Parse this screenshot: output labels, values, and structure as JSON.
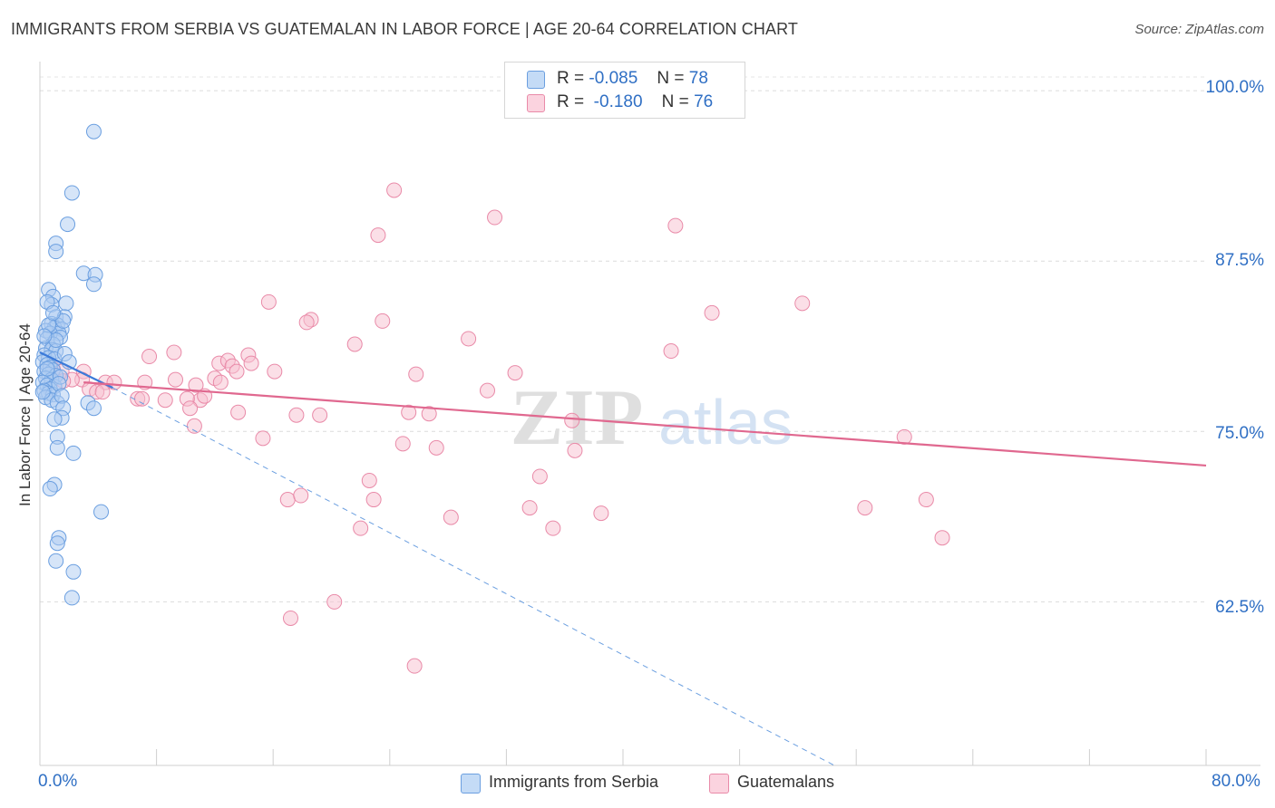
{
  "title": "IMMIGRANTS FROM SERBIA VS GUATEMALAN IN LABOR FORCE | AGE 20-64 CORRELATION CHART",
  "source": "Source: ZipAtlas.com",
  "watermark": {
    "zip": "ZIP",
    "atlas": "atlas"
  },
  "stats": [
    {
      "r_label": "R =",
      "r_value": "-0.085",
      "n_label": "N =",
      "n_value": "78",
      "color": "#aecbf2"
    },
    {
      "r_label": "R =",
      "r_value": "-0.180",
      "n_label": "N =",
      "n_value": "76",
      "color": "#f7bfd0"
    }
  ],
  "chart_data": {
    "type": "scatter",
    "title": "IMMIGRANTS FROM SERBIA VS GUATEMALAN IN LABOR FORCE | AGE 20-64 CORRELATION CHART",
    "xlabel": "",
    "ylabel": "In Labor Force | Age 20-64",
    "xlim": [
      0,
      80
    ],
    "ylim": [
      50.5,
      102
    ],
    "x_tick_labels": [
      {
        "value": 0,
        "label": "0.0%"
      },
      {
        "value": 80,
        "label": "80.0%"
      }
    ],
    "x_minor_ticks": [
      0,
      8,
      16,
      24,
      32,
      40,
      48,
      56,
      64,
      72,
      80
    ],
    "y_ticks": [
      {
        "value": 62.5,
        "label": "62.5%"
      },
      {
        "value": 75.0,
        "label": "75.0%"
      },
      {
        "value": 87.5,
        "label": "87.5%"
      },
      {
        "value": 100.0,
        "label": "100.0%"
      }
    ],
    "grid": "horizontal dashed",
    "legend_position": "bottom-center",
    "series": [
      {
        "name": "Immigrants from Serbia",
        "color": "#aecbf2",
        "stroke": "#6b9fe0",
        "points": [
          [
            3.7,
            97.0
          ],
          [
            2.2,
            92.5
          ],
          [
            1.9,
            90.2
          ],
          [
            1.1,
            88.8
          ],
          [
            1.1,
            88.2
          ],
          [
            3.0,
            86.6
          ],
          [
            3.8,
            86.5
          ],
          [
            3.7,
            85.8
          ],
          [
            0.6,
            85.4
          ],
          [
            0.9,
            84.9
          ],
          [
            1.8,
            84.4
          ],
          [
            0.8,
            84.3
          ],
          [
            1.1,
            83.4
          ],
          [
            1.7,
            83.4
          ],
          [
            0.8,
            82.9
          ],
          [
            1.2,
            82.8
          ],
          [
            1.0,
            82.6
          ],
          [
            1.5,
            82.5
          ],
          [
            1.3,
            82.2
          ],
          [
            0.4,
            82.4
          ],
          [
            0.7,
            82.2
          ],
          [
            1.4,
            81.9
          ],
          [
            0.5,
            81.8
          ],
          [
            0.9,
            81.4
          ],
          [
            0.4,
            81.1
          ],
          [
            0.8,
            81.0
          ],
          [
            1.1,
            80.9
          ],
          [
            0.3,
            80.6
          ],
          [
            0.6,
            80.4
          ],
          [
            1.0,
            80.3
          ],
          [
            0.2,
            80.1
          ],
          [
            0.5,
            79.9
          ],
          [
            0.7,
            79.7
          ],
          [
            0.9,
            79.5
          ],
          [
            0.3,
            79.4
          ],
          [
            0.6,
            79.2
          ],
          [
            1.1,
            79.1
          ],
          [
            0.4,
            78.9
          ],
          [
            0.8,
            78.8
          ],
          [
            0.2,
            78.6
          ],
          [
            0.5,
            78.4
          ],
          [
            1.0,
            78.3
          ],
          [
            0.7,
            78.1
          ],
          [
            0.3,
            78.0
          ],
          [
            0.6,
            77.8
          ],
          [
            0.9,
            77.7
          ],
          [
            0.4,
            77.5
          ],
          [
            0.8,
            77.3
          ],
          [
            1.2,
            77.1
          ],
          [
            0.5,
            79.6
          ],
          [
            1.7,
            80.7
          ],
          [
            1.4,
            79.0
          ],
          [
            1.3,
            78.5
          ],
          [
            2.0,
            80.1
          ],
          [
            1.5,
            77.6
          ],
          [
            0.2,
            77.9
          ],
          [
            0.6,
            82.8
          ],
          [
            1.1,
            81.7
          ],
          [
            0.5,
            84.5
          ],
          [
            1.6,
            83.1
          ],
          [
            0.9,
            83.7
          ],
          [
            0.3,
            82.0
          ],
          [
            3.3,
            77.1
          ],
          [
            3.7,
            76.7
          ],
          [
            1.6,
            76.7
          ],
          [
            1.5,
            76.0
          ],
          [
            1.0,
            75.9
          ],
          [
            1.2,
            74.6
          ],
          [
            1.2,
            73.8
          ],
          [
            2.3,
            73.4
          ],
          [
            1.0,
            71.1
          ],
          [
            0.7,
            70.8
          ],
          [
            4.2,
            69.1
          ],
          [
            1.3,
            67.2
          ],
          [
            1.2,
            66.8
          ],
          [
            1.1,
            65.5
          ],
          [
            2.3,
            64.7
          ],
          [
            2.2,
            62.8
          ]
        ]
      },
      {
        "name": "Guatemalans",
        "color": "#f7bfd0",
        "stroke": "#e98aa8",
        "points": [
          [
            24.3,
            92.7
          ],
          [
            31.2,
            90.7
          ],
          [
            43.6,
            90.1
          ],
          [
            23.2,
            89.4
          ],
          [
            52.3,
            84.4
          ],
          [
            15.7,
            84.5
          ],
          [
            46.1,
            83.7
          ],
          [
            23.5,
            83.1
          ],
          [
            18.6,
            83.2
          ],
          [
            18.3,
            83.0
          ],
          [
            29.4,
            81.8
          ],
          [
            21.6,
            81.4
          ],
          [
            43.3,
            80.9
          ],
          [
            7.5,
            80.5
          ],
          [
            9.2,
            80.8
          ],
          [
            12.3,
            80.0
          ],
          [
            12.9,
            80.2
          ],
          [
            14.3,
            80.6
          ],
          [
            14.5,
            80.0
          ],
          [
            13.2,
            79.8
          ],
          [
            16.1,
            79.4
          ],
          [
            3.0,
            79.4
          ],
          [
            13.5,
            79.4
          ],
          [
            25.8,
            79.2
          ],
          [
            32.6,
            79.3
          ],
          [
            9.3,
            78.8
          ],
          [
            12.0,
            78.9
          ],
          [
            12.4,
            78.6
          ],
          [
            4.5,
            78.6
          ],
          [
            5.1,
            78.6
          ],
          [
            2.9,
            78.8
          ],
          [
            0.9,
            79.6
          ],
          [
            1.5,
            79.4
          ],
          [
            2.2,
            78.8
          ],
          [
            3.4,
            78.1
          ],
          [
            7.2,
            78.6
          ],
          [
            10.7,
            78.4
          ],
          [
            6.7,
            77.4
          ],
          [
            7.0,
            77.4
          ],
          [
            11.0,
            77.3
          ],
          [
            8.6,
            77.3
          ],
          [
            10.1,
            77.4
          ],
          [
            11.3,
            77.6
          ],
          [
            3.9,
            77.9
          ],
          [
            4.3,
            77.9
          ],
          [
            1.6,
            78.7
          ],
          [
            30.7,
            78.0
          ],
          [
            10.3,
            76.7
          ],
          [
            13.6,
            76.4
          ],
          [
            17.6,
            76.2
          ],
          [
            19.2,
            76.2
          ],
          [
            25.3,
            76.4
          ],
          [
            26.7,
            76.3
          ],
          [
            36.5,
            75.8
          ],
          [
            10.6,
            75.4
          ],
          [
            15.3,
            74.5
          ],
          [
            24.9,
            74.1
          ],
          [
            27.2,
            73.8
          ],
          [
            36.7,
            73.6
          ],
          [
            22.6,
            71.4
          ],
          [
            34.3,
            71.7
          ],
          [
            17.0,
            70.0
          ],
          [
            17.9,
            70.3
          ],
          [
            22.9,
            70.0
          ],
          [
            33.6,
            69.4
          ],
          [
            28.2,
            68.7
          ],
          [
            38.5,
            69.0
          ],
          [
            56.6,
            69.4
          ],
          [
            60.8,
            70.0
          ],
          [
            22.0,
            67.9
          ],
          [
            35.2,
            67.9
          ],
          [
            61.9,
            67.2
          ],
          [
            20.2,
            62.5
          ],
          [
            17.2,
            61.3
          ],
          [
            25.7,
            57.8
          ],
          [
            59.3,
            74.6
          ]
        ]
      }
    ],
    "trendlines": [
      {
        "series": "Immigrants from Serbia",
        "style": "solid",
        "x": [
          0,
          5
        ],
        "y": [
          80.8,
          78.2
        ],
        "color": "#3b7ad9"
      },
      {
        "series": "Immigrants from Serbia",
        "style": "dashed",
        "x": [
          5,
          54.5
        ],
        "y": [
          78.2,
          50.5
        ],
        "color": "#6b9fe0"
      },
      {
        "series": "Guatemalans",
        "style": "solid",
        "x": [
          3,
          80
        ],
        "y": [
          78.6,
          72.5
        ],
        "color": "#e0688f"
      }
    ]
  }
}
